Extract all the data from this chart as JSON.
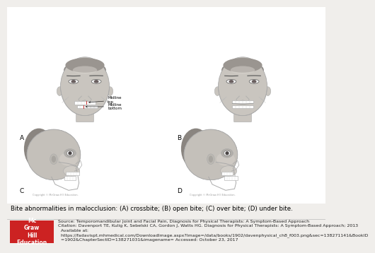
{
  "bg_color": "#f0eeeb",
  "illustration_bg": "#ffffff",
  "caption_text": "Bite abnormalities in malocclusion: (A) crossbite; (B) open bite; (C) over bite; (D) under bite.",
  "caption_fontsize": 6.2,
  "source_line1": "Source: Temporomandibular Joint and Facial Pain, Diagnosis for Physical Therapists: A Symptom-Based Approach",
  "source_line2": "Citation: Davenport TE, Kulig K, Sebelski CA, Gordon J, Watts HG. Diagnosis for Physical Therapists: A Symptom-Based Approach; 2013",
  "source_line3": "Available at:",
  "source_line4": "https://fadavispt.mhmedical.com/DownloadImage.aspx?Image=/data/books/1902/davenphysical_ch8_f003.png&sec=138271141&BookID",
  "source_line5": "=1902&ChapterSectID=138271031&imagename= Accessed: October 23, 2017",
  "source_fontsize": 4.5,
  "logo_text": "Mc\nGraw\nHill\nEducation",
  "logo_bg": "#cc2222",
  "logo_fontsize": 5.5,
  "panel_label_fontsize": 6.5,
  "face_color": "#c8c4be",
  "face_edge": "#999999",
  "skull_color": "#c0bcb6",
  "annotation_fontsize": 4.0,
  "small_text_color": "#555555",
  "divider_color": "#bbbbbb",
  "small_caption_color": "#666666"
}
